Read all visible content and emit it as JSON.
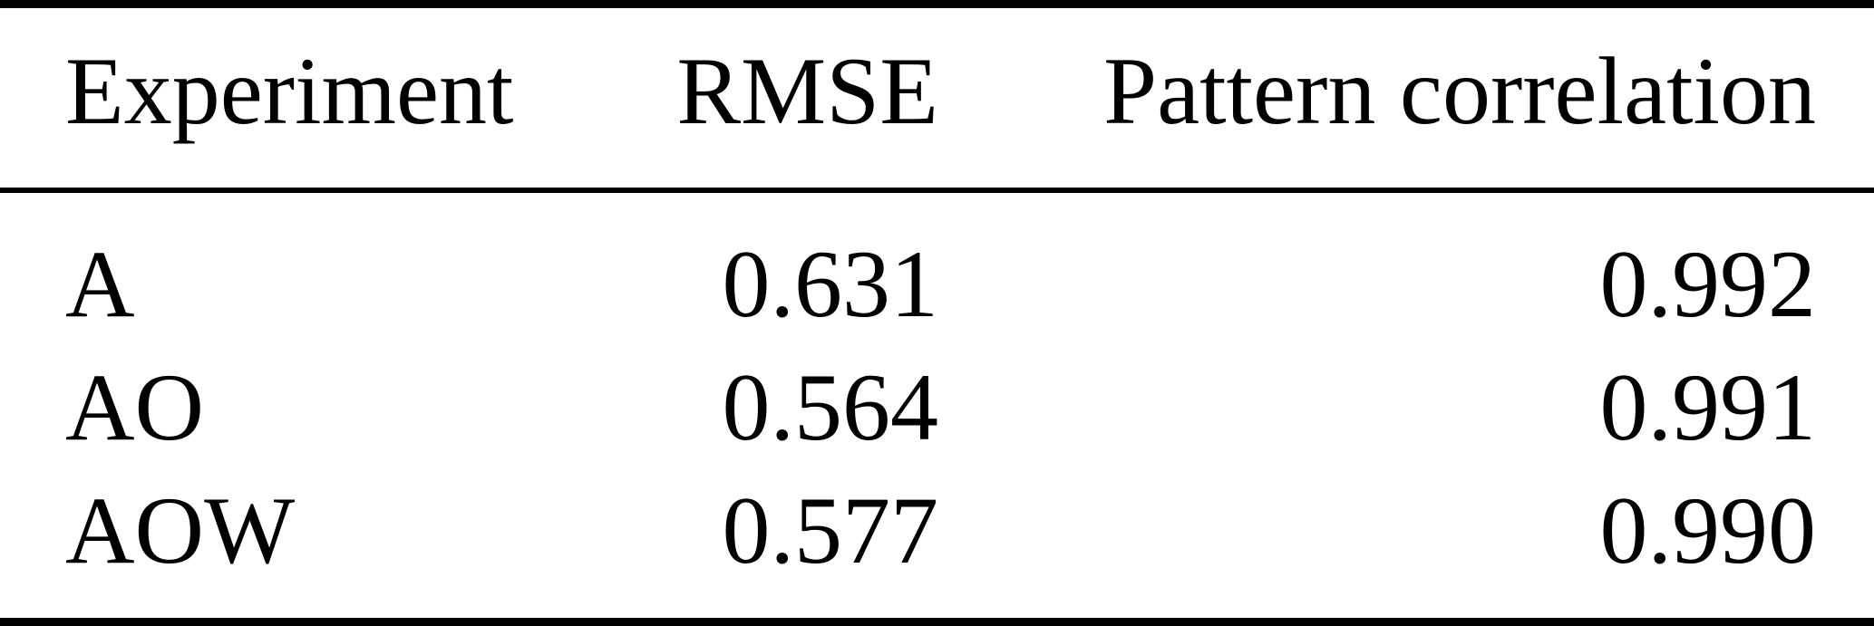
{
  "table": {
    "headers": {
      "experiment": "Experiment",
      "rmse": "RMSE",
      "pattern_correlation": "Pattern correlation"
    },
    "rows": [
      {
        "experiment": "A",
        "rmse": "0.631",
        "pattern_correlation": "0.992"
      },
      {
        "experiment": "AO",
        "rmse": "0.564",
        "pattern_correlation": "0.991"
      },
      {
        "experiment": "AOW",
        "rmse": "0.577",
        "pattern_correlation": "0.990"
      }
    ]
  },
  "colors": {
    "background": "#ffffff",
    "text": "#000000",
    "rule": "#000000"
  },
  "chart_data": {
    "type": "table",
    "columns": [
      "Experiment",
      "RMSE",
      "Pattern correlation"
    ],
    "rows": [
      [
        "A",
        0.631,
        0.992
      ],
      [
        "AO",
        0.564,
        0.991
      ],
      [
        "AOW",
        0.577,
        0.99
      ]
    ]
  }
}
